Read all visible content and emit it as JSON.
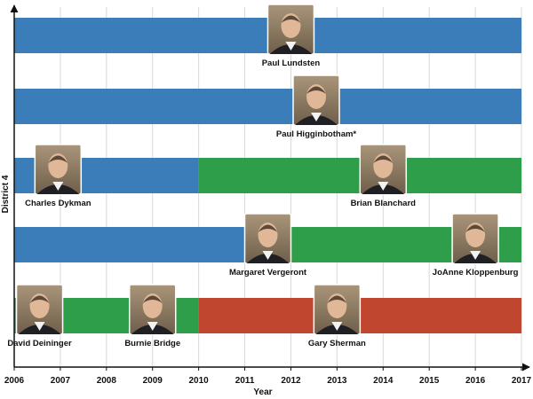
{
  "chart_data": {
    "type": "timeline",
    "title": "",
    "xlabel": "Year",
    "ylabel": "District 4",
    "x_ticks": [
      "2006",
      "2007",
      "2008",
      "2009",
      "2010",
      "2011",
      "2012",
      "2013",
      "2014",
      "2015",
      "2016",
      "2017"
    ],
    "xlim": [
      2006,
      2017
    ],
    "grid": "vertical",
    "rows": [
      {
        "segments": [
          {
            "start": 2006,
            "end": 2017,
            "judge": "Paul Lundsten",
            "color": "#3a7db9"
          }
        ]
      },
      {
        "segments": [
          {
            "start": 2006,
            "end": 2017,
            "judge": "Paul Higginbotham*",
            "color": "#3a7db9"
          }
        ]
      },
      {
        "segments": [
          {
            "start": 2006,
            "end": 2010,
            "judge": "Charles Dykman",
            "color": "#3a7db9"
          },
          {
            "start": 2010,
            "end": 2017,
            "judge": "Brian Blanchard",
            "color": "#2f9e4a"
          }
        ]
      },
      {
        "segments": [
          {
            "start": 2006,
            "end": 2011.1,
            "judge": "Margaret Vergeront",
            "color": "#3a7db9"
          },
          {
            "start": 2011.1,
            "end": 2017,
            "judge": "JoAnne Kloppenburg",
            "color": "#2f9e4a"
          }
        ]
      },
      {
        "segments": [
          {
            "start": 2006,
            "end": 2010,
            "judge": "David Deininger / Burnie Bridge",
            "color": "#2f9e4a"
          },
          {
            "start": 2010,
            "end": 2017,
            "judge": "Gary Sherman",
            "color": "#c0462f"
          }
        ]
      }
    ],
    "people": [
      {
        "name": "Paul Lundsten",
        "row": 0,
        "photo_year": 2012.0,
        "label_year": 2012.0
      },
      {
        "name": "Paul Higginbotham*",
        "row": 1,
        "photo_year": 2012.55,
        "label_year": 2012.55
      },
      {
        "name": "Charles Dykman",
        "row": 2,
        "photo_year": 2006.95,
        "label_year": 2006.95
      },
      {
        "name": "Brian Blanchard",
        "row": 2,
        "photo_year": 2014.0,
        "label_year": 2014.0
      },
      {
        "name": "Margaret Vergeront",
        "row": 3,
        "photo_year": 2011.5,
        "label_year": 2011.5
      },
      {
        "name": "JoAnne Kloppenburg",
        "row": 3,
        "photo_year": 2016.0,
        "label_year": 2016.0
      },
      {
        "name": "David Deininger",
        "row": 4,
        "photo_year": 2006.55,
        "label_year": 2006.55
      },
      {
        "name": "Burnie Bridge",
        "row": 4,
        "photo_year": 2009.0,
        "label_year": 2009.0
      },
      {
        "name": "Gary Sherman",
        "row": 4,
        "photo_year": 2013.0,
        "label_year": 2013.0
      }
    ]
  }
}
